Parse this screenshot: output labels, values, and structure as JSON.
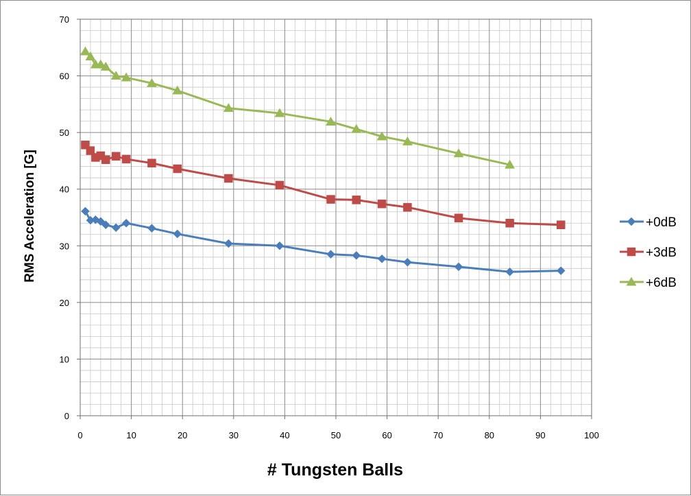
{
  "chart_data": {
    "type": "line",
    "title": "",
    "xlabel": "# Tungsten Balls",
    "ylabel": "RMS Acceleration [G]",
    "xlim": [
      0,
      100
    ],
    "ylim": [
      0,
      70
    ],
    "x_ticks": [
      0,
      10,
      20,
      30,
      40,
      50,
      60,
      70,
      80,
      90,
      100
    ],
    "y_ticks": [
      0,
      10,
      20,
      30,
      40,
      50,
      60,
      70
    ],
    "grid": true,
    "minor_grid": true,
    "legend_position": "right",
    "series": [
      {
        "name": "+0dB",
        "color": "#4a7ebb",
        "marker": "diamond",
        "x": [
          1,
          2,
          3,
          4,
          5,
          7,
          9,
          14,
          19,
          29,
          39,
          49,
          54,
          59,
          64,
          74,
          84,
          94
        ],
        "values": [
          36.1,
          34.5,
          34.6,
          34.3,
          33.7,
          33.2,
          34.0,
          33.1,
          32.1,
          30.4,
          30.0,
          28.5,
          28.3,
          27.7,
          27.1,
          26.3,
          25.4,
          25.6
        ]
      },
      {
        "name": "+3dB",
        "color": "#be4b48",
        "marker": "square",
        "x": [
          1,
          2,
          3,
          4,
          5,
          7,
          9,
          14,
          19,
          29,
          39,
          49,
          54,
          59,
          64,
          74,
          84,
          94
        ],
        "values": [
          47.8,
          46.8,
          45.6,
          45.9,
          45.2,
          45.8,
          45.3,
          44.6,
          43.6,
          41.9,
          40.7,
          38.2,
          38.1,
          37.4,
          36.8,
          34.9,
          34.0,
          33.7
        ]
      },
      {
        "name": "+6dB",
        "color": "#98b954",
        "marker": "triangle",
        "x": [
          1,
          2,
          3,
          4,
          5,
          7,
          9,
          14,
          19,
          29,
          39,
          49,
          54,
          59,
          64,
          74,
          84
        ],
        "values": [
          64.3,
          63.4,
          62.0,
          62.0,
          61.6,
          60.0,
          59.7,
          58.7,
          57.4,
          54.3,
          53.4,
          51.9,
          50.6,
          49.3,
          48.4,
          46.3,
          44.3
        ]
      }
    ]
  }
}
